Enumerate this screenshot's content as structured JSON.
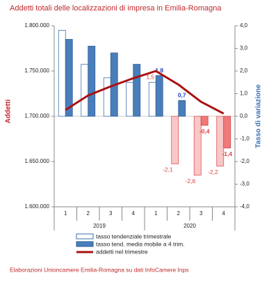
{
  "chart_data": {
    "type": "combo",
    "title": "Addetti totali delle localizzazioni di impresa in Emilia-Romagna",
    "y_label": "Addetti",
    "y2_label": "Tasso di variazione",
    "source": "Elaborazioni Unioncamere Emilia-Romagna su dati InfoCamere Inps",
    "categories": [
      "1",
      "2",
      "3",
      "4",
      "1",
      "2",
      "3",
      "4"
    ],
    "category_groups": [
      "2019",
      "2020"
    ],
    "ylim": [
      1600000,
      1800000
    ],
    "yticks": [
      {
        "value": 1600000,
        "label": "1.600.000"
      },
      {
        "value": 1650000,
        "label": "1.650.000"
      },
      {
        "value": 1700000,
        "label": "1.700.000"
      },
      {
        "value": 1750000,
        "label": "1.750.000"
      },
      {
        "value": 1800000,
        "label": "1.800.000"
      }
    ],
    "y2lim": [
      -4,
      4
    ],
    "y2ticks": [
      {
        "value": 4,
        "label": "4,0"
      },
      {
        "value": 3,
        "label": "3,0"
      },
      {
        "value": 2,
        "label": "2,0"
      },
      {
        "value": 1,
        "label": "1,0"
      },
      {
        "value": 0,
        "label": "0,0"
      },
      {
        "value": -1,
        "label": "-1,0"
      },
      {
        "value": -2,
        "label": "-2,0"
      },
      {
        "value": -3,
        "label": "-3,0"
      },
      {
        "value": -4,
        "label": "-4,0"
      }
    ],
    "series": [
      {
        "name": "tasso tendenziale trimestrale",
        "type": "bar",
        "axis": "y2",
        "color": "#ffffff",
        "stroke": "#3a6fb0",
        "negative_color": "#f8c8c8",
        "negative_stroke": "#e05050",
        "label_color": "#e04040",
        "values": [
          3.8,
          2.3,
          1.7,
          1.5,
          1.5,
          -2.1,
          -2.6,
          -2.2
        ],
        "value_labels": [
          null,
          null,
          null,
          null,
          "1,5",
          "-2,1",
          "-2,6",
          "-2,2"
        ]
      },
      {
        "name": "tasso tend. media mobile a 4 trim.",
        "type": "bar",
        "axis": "y2",
        "color": "#4a7ebb",
        "stroke": "#2f5f99",
        "negative_color": "#f07a7a",
        "negative_stroke": "#d04040",
        "label_color": "#2040c0",
        "values": [
          3.4,
          3.1,
          2.8,
          2.3,
          1.8,
          0.7,
          -0.4,
          -1.4
        ],
        "value_labels": [
          null,
          null,
          null,
          null,
          "1,8",
          "0,7",
          "-0,4",
          "-1,4"
        ]
      },
      {
        "name": "addetti nel trimestre",
        "type": "line",
        "color": "#aa1111",
        "values": [
          1707000,
          1723000,
          1733000,
          1742000,
          1750000,
          1735000,
          1716000,
          1703000
        ]
      }
    ]
  }
}
